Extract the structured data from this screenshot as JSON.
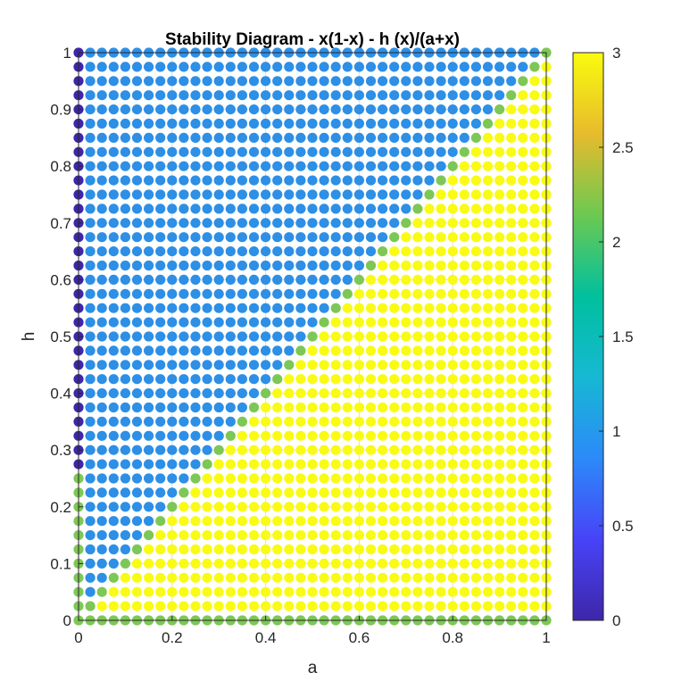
{
  "chart_data": {
    "type": "scatter",
    "title": "Stability Diagram - x(1-x) - h (x)/(a+x)",
    "xlabel": "a",
    "ylabel": "h",
    "xlim": [
      0,
      1
    ],
    "ylim": [
      0,
      1
    ],
    "xticks": [
      "0",
      "0.2",
      "0.4",
      "0.6",
      "0.8",
      "1"
    ],
    "yticks": [
      "0",
      "0.1",
      "0.2",
      "0.3",
      "0.4",
      "0.5",
      "0.6",
      "0.7",
      "0.8",
      "0.9",
      "1"
    ],
    "grid": true,
    "grid_step": 0.025,
    "categories_by_value": {
      "0": "a = 0, h > 0.25",
      "1": "h > a (above diagonal)",
      "2": "boundary h = a, a = 0 with h <= 0.25, and h = 0",
      "3": "h < a (below diagonal)"
    },
    "colorbar": {
      "range": [
        0,
        3
      ],
      "ticks": [
        "0",
        "0.5",
        "1",
        "1.5",
        "2",
        "2.5",
        "3"
      ],
      "colormap": "parula",
      "colors": [
        "#3e26a8",
        "#4743f8",
        "#2c8af9",
        "#16b8d3",
        "#00c09d",
        "#6cc951",
        "#e7bb2c",
        "#f9fb0e"
      ]
    },
    "point_colors": {
      "0": "#3e26a8",
      "1": "#2d8fe6",
      "2": "#7dc756",
      "3": "#f9fb15"
    }
  }
}
